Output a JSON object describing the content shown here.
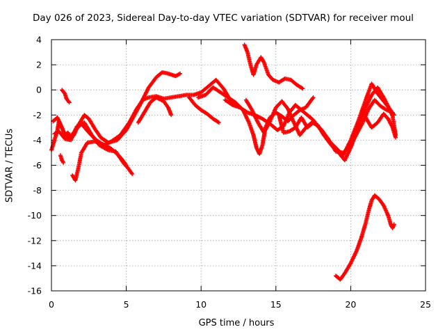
{
  "chart_data": {
    "type": "scatter",
    "title": "Day 026 of 2023, Sidereal Day-to-day VTEC variation (SDTVAR) for receiver moul",
    "xlabel": "GPS time / hours",
    "ylabel": "SDTVAR / TECUs",
    "xlim": [
      0,
      25
    ],
    "ylim": [
      -16,
      4
    ],
    "xticks": [
      0,
      5,
      10,
      15,
      20,
      25
    ],
    "yticks": [
      4,
      2,
      0,
      -2,
      -4,
      -6,
      -8,
      -10,
      -12,
      -14,
      -16
    ],
    "grid": true,
    "marker": "+",
    "color": "#ff0000",
    "series": [
      {
        "name": "track-1",
        "points": [
          [
            0.0,
            -4.8
          ],
          [
            0.2,
            -4.0
          ],
          [
            0.4,
            -3.2
          ],
          [
            0.5,
            -2.5
          ],
          [
            0.7,
            -3.0
          ],
          [
            0.9,
            -3.6
          ],
          [
            1.1,
            -3.4
          ],
          [
            1.3,
            -3.8
          ],
          [
            1.5,
            -3.6
          ],
          [
            1.8,
            -2.8
          ],
          [
            2.2,
            -2.0
          ],
          [
            2.5,
            -2.3
          ],
          [
            2.9,
            -3.1
          ],
          [
            3.3,
            -3.8
          ],
          [
            3.8,
            -4.2
          ],
          [
            4.4,
            -4.0
          ],
          [
            5.0,
            -3.2
          ],
          [
            5.5,
            -2.1
          ],
          [
            6.0,
            -1.0
          ],
          [
            6.5,
            0.2
          ],
          [
            7.0,
            1.0
          ],
          [
            7.4,
            1.4
          ],
          [
            7.8,
            1.3
          ],
          [
            8.3,
            1.1
          ],
          [
            8.6,
            1.3
          ]
        ]
      },
      {
        "name": "track-2",
        "points": [
          [
            0.1,
            -2.5
          ],
          [
            0.4,
            -2.2
          ],
          [
            0.8,
            -3.3
          ],
          [
            1.2,
            -3.9
          ],
          [
            1.6,
            -3.2
          ],
          [
            2.0,
            -2.7
          ],
          [
            2.5,
            -3.4
          ],
          [
            3.0,
            -4.0
          ],
          [
            3.5,
            -4.4
          ],
          [
            4.0,
            -4.1
          ],
          [
            4.6,
            -3.6
          ],
          [
            5.2,
            -2.6
          ],
          [
            5.7,
            -1.5
          ],
          [
            6.1,
            -0.8
          ],
          [
            6.5,
            -0.6
          ],
          [
            7.0,
            -0.5
          ],
          [
            7.5,
            -0.7
          ],
          [
            8.0,
            -0.6
          ],
          [
            8.5,
            -0.5
          ],
          [
            9.0,
            -0.4
          ],
          [
            9.5,
            -0.4
          ],
          [
            10.0,
            -0.2
          ],
          [
            10.5,
            0.3
          ],
          [
            11.0,
            0.8
          ],
          [
            11.5,
            0.1
          ],
          [
            12.0,
            -0.9
          ],
          [
            12.5,
            -1.3
          ]
        ]
      },
      {
        "name": "track-3",
        "points": [
          [
            0.2,
            -3.5
          ],
          [
            0.5,
            -3.3
          ],
          [
            0.9,
            -3.9
          ],
          [
            1.3,
            -4.0
          ],
          [
            1.7,
            -2.9
          ],
          [
            2.2,
            -2.6
          ],
          [
            2.7,
            -3.6
          ],
          [
            3.2,
            -4.4
          ],
          [
            3.8,
            -4.8
          ],
          [
            4.3,
            -4.9
          ],
          [
            4.8,
            -5.8
          ],
          [
            5.1,
            -6.2
          ],
          [
            5.4,
            -6.7
          ]
        ]
      },
      {
        "name": "track-4",
        "points": [
          [
            1.4,
            -6.8
          ],
          [
            1.6,
            -7.2
          ],
          [
            1.8,
            -6.2
          ],
          [
            2.0,
            -5.0
          ],
          [
            2.4,
            -4.2
          ],
          [
            2.9,
            -4.1
          ],
          [
            3.4,
            -4.3
          ],
          [
            3.9,
            -4.6
          ],
          [
            4.3,
            -5.0
          ],
          [
            4.7,
            -5.5
          ],
          [
            5.0,
            -6.0
          ]
        ]
      },
      {
        "name": "track-5",
        "points": [
          [
            0.6,
            -5.2
          ],
          [
            0.7,
            -5.6
          ],
          [
            0.8,
            -5.8
          ]
        ]
      },
      {
        "name": "track-6",
        "points": [
          [
            0.7,
            0.0
          ],
          [
            0.9,
            -0.3
          ],
          [
            1.0,
            -0.7
          ],
          [
            1.2,
            -1.0
          ]
        ]
      },
      {
        "name": "track-7",
        "points": [
          [
            5.8,
            -2.6
          ],
          [
            6.2,
            -1.8
          ],
          [
            6.6,
            -1.0
          ],
          [
            7.0,
            -0.6
          ],
          [
            7.5,
            -0.9
          ],
          [
            7.8,
            -1.4
          ],
          [
            8.0,
            -2.0
          ]
        ]
      },
      {
        "name": "track-8",
        "points": [
          [
            9.2,
            -0.6
          ],
          [
            9.6,
            -1.2
          ],
          [
            10.0,
            -1.6
          ],
          [
            10.4,
            -1.9
          ],
          [
            10.8,
            -2.3
          ],
          [
            11.2,
            -2.6
          ]
        ]
      },
      {
        "name": "track-9",
        "points": [
          [
            9.8,
            -0.6
          ],
          [
            10.3,
            -0.4
          ],
          [
            10.8,
            0.2
          ],
          [
            11.3,
            -0.2
          ],
          [
            11.8,
            -0.6
          ],
          [
            12.3,
            -1.0
          ],
          [
            12.8,
            -1.6
          ],
          [
            13.2,
            -2.6
          ],
          [
            13.5,
            -3.6
          ],
          [
            13.7,
            -4.6
          ],
          [
            13.9,
            -5.1
          ],
          [
            14.1,
            -4.4
          ],
          [
            14.3,
            -3.0
          ],
          [
            14.6,
            -2.2
          ],
          [
            15.0,
            -1.8
          ],
          [
            15.4,
            -2.1
          ],
          [
            15.8,
            -2.5
          ],
          [
            16.2,
            -2.0
          ],
          [
            16.6,
            -1.6
          ],
          [
            17.0,
            -1.4
          ],
          [
            17.5,
            -0.6
          ]
        ]
      },
      {
        "name": "track-10",
        "points": [
          [
            11.6,
            -0.8
          ],
          [
            12.1,
            -1.2
          ],
          [
            12.6,
            -1.4
          ],
          [
            13.1,
            -1.8
          ],
          [
            13.6,
            -2.0
          ],
          [
            14.1,
            -2.3
          ],
          [
            14.6,
            -2.7
          ],
          [
            15.1,
            -3.2
          ],
          [
            15.5,
            -2.9
          ],
          [
            15.9,
            -1.8
          ],
          [
            16.3,
            -1.2
          ],
          [
            16.7,
            -1.6
          ],
          [
            17.1,
            -2.0
          ],
          [
            17.5,
            -2.4
          ],
          [
            18.0,
            -3.2
          ],
          [
            18.5,
            -4.0
          ],
          [
            19.0,
            -4.6
          ],
          [
            19.5,
            -5.2
          ],
          [
            20.0,
            -4.0
          ],
          [
            20.5,
            -2.5
          ],
          [
            21.0,
            -0.8
          ],
          [
            21.4,
            0.5
          ],
          [
            21.8,
            -0.3
          ],
          [
            22.2,
            -0.9
          ],
          [
            22.6,
            -1.5
          ],
          [
            22.9,
            -2.0
          ]
        ]
      },
      {
        "name": "track-11",
        "points": [
          [
            12.9,
            3.6
          ],
          [
            13.1,
            3.0
          ],
          [
            13.3,
            2.0
          ],
          [
            13.5,
            1.2
          ],
          [
            13.7,
            2.0
          ],
          [
            14.0,
            2.6
          ],
          [
            14.2,
            2.2
          ],
          [
            14.5,
            1.2
          ],
          [
            14.8,
            0.8
          ],
          [
            15.2,
            0.6
          ],
          [
            15.6,
            0.9
          ],
          [
            16.0,
            0.8
          ],
          [
            16.4,
            0.4
          ],
          [
            16.8,
            0.1
          ]
        ]
      },
      {
        "name": "track-12",
        "points": [
          [
            13.0,
            -0.8
          ],
          [
            13.4,
            -1.6
          ],
          [
            13.8,
            -2.6
          ],
          [
            14.2,
            -3.4
          ],
          [
            14.6,
            -2.5
          ],
          [
            15.0,
            -1.4
          ],
          [
            15.4,
            -0.9
          ],
          [
            15.8,
            -1.5
          ],
          [
            16.2,
            -2.6
          ],
          [
            16.6,
            -3.6
          ],
          [
            17.0,
            -3.0
          ],
          [
            17.4,
            -2.6
          ],
          [
            17.8,
            -2.8
          ],
          [
            18.2,
            -3.6
          ],
          [
            18.7,
            -4.4
          ],
          [
            19.2,
            -5.0
          ],
          [
            19.6,
            -5.6
          ],
          [
            20.0,
            -4.6
          ],
          [
            20.5,
            -3.0
          ],
          [
            21.0,
            -1.4
          ],
          [
            21.4,
            -0.4
          ],
          [
            21.8,
            0.2
          ],
          [
            22.2,
            -0.6
          ],
          [
            22.5,
            -1.3
          ],
          [
            22.8,
            -2.1
          ],
          [
            23.0,
            -3.6
          ]
        ]
      },
      {
        "name": "track-13",
        "points": [
          [
            15.2,
            -2.0
          ],
          [
            15.5,
            -3.4
          ],
          [
            15.9,
            -3.3
          ],
          [
            16.3,
            -3.0
          ],
          [
            16.7,
            -2.2
          ],
          [
            17.1,
            -3.0
          ],
          [
            17.5,
            -2.6
          ],
          [
            18.0,
            -3.1
          ],
          [
            18.5,
            -3.9
          ],
          [
            19.0,
            -4.9
          ],
          [
            19.5,
            -5.0
          ],
          [
            20.0,
            -4.4
          ],
          [
            20.4,
            -3.5
          ],
          [
            20.8,
            -2.6
          ],
          [
            21.2,
            -1.5
          ],
          [
            21.6,
            -0.8
          ],
          [
            22.0,
            -1.3
          ],
          [
            22.4,
            -1.6
          ],
          [
            22.8,
            -1.8
          ]
        ]
      },
      {
        "name": "track-14",
        "points": [
          [
            21.0,
            -2.2
          ],
          [
            21.4,
            -3.0
          ],
          [
            21.8,
            -2.6
          ],
          [
            22.2,
            -1.9
          ],
          [
            22.5,
            -2.3
          ],
          [
            22.8,
            -3.0
          ],
          [
            23.0,
            -3.8
          ]
        ]
      },
      {
        "name": "track-15",
        "points": [
          [
            19.0,
            -14.8
          ],
          [
            19.3,
            -15.1
          ],
          [
            19.6,
            -14.6
          ],
          [
            20.0,
            -13.8
          ],
          [
            20.4,
            -12.8
          ],
          [
            20.7,
            -11.8
          ],
          [
            21.0,
            -10.6
          ],
          [
            21.2,
            -9.6
          ],
          [
            21.4,
            -8.8
          ],
          [
            21.6,
            -8.4
          ],
          [
            21.9,
            -8.7
          ],
          [
            22.2,
            -9.2
          ],
          [
            22.5,
            -10.0
          ],
          [
            22.7,
            -10.8
          ],
          [
            22.8,
            -11.0
          ],
          [
            22.9,
            -10.7
          ]
        ]
      }
    ]
  }
}
